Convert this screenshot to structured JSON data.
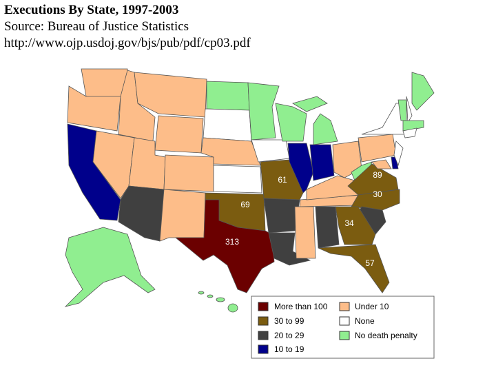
{
  "header": {
    "title": "Executions By State, 1997-2003",
    "source": "Source: Bureau of Justice Statistics",
    "url": "http://www.ojp.usdoj.gov/bjs/pub/pdf/cp03.pdf"
  },
  "map": {
    "labels": [
      61,
      89,
      69,
      30,
      34,
      313,
      57
    ]
  },
  "legend": {
    "items": [
      "More than 100",
      "30 to 99",
      "20 to 29",
      "10 to 19",
      "Under 10",
      "None",
      "No death penalty"
    ]
  }
}
